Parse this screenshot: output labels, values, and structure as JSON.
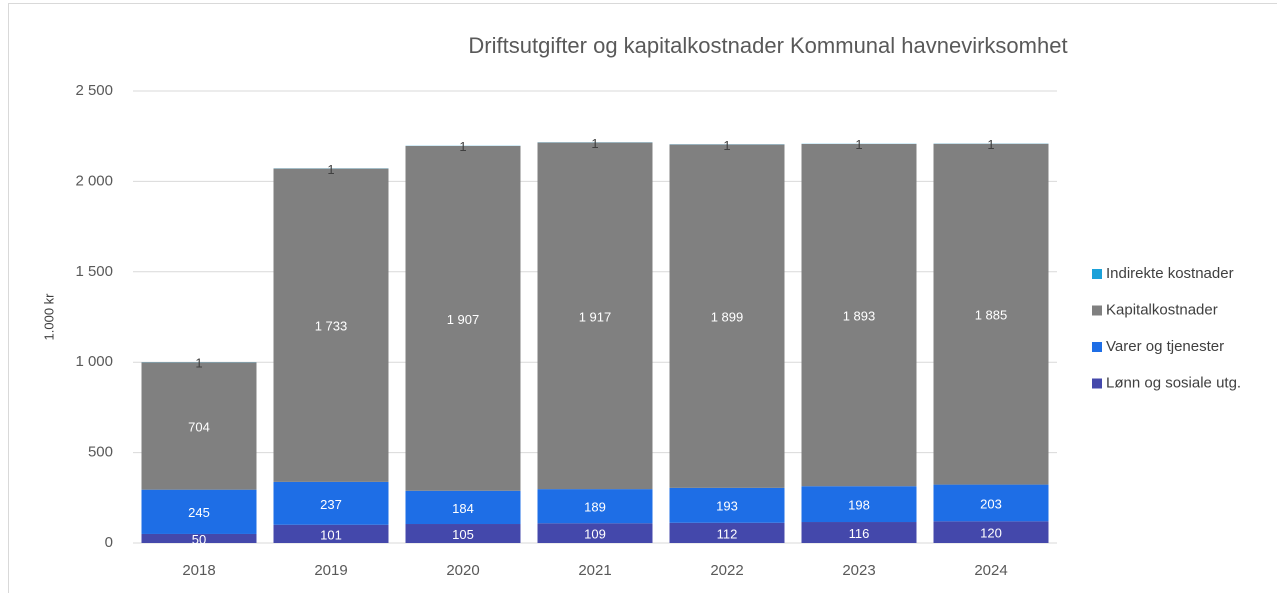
{
  "chart_data": {
    "type": "stacked_bar",
    "title": "Driftsutgifter og kapitalkostnader Kommunal havnevirksomhet",
    "y_label": "1.000 kr",
    "categories": [
      "2018",
      "2019",
      "2020",
      "2021",
      "2022",
      "2023",
      "2024"
    ],
    "series": [
      {
        "name": "Lønn og sosiale utg.",
        "color": "#4448ab",
        "values": [
          50,
          101,
          105,
          109,
          112,
          116,
          120
        ]
      },
      {
        "name": "Varer og tjenester",
        "color": "#1e6ee6",
        "values": [
          245,
          237,
          184,
          189,
          193,
          198,
          203
        ]
      },
      {
        "name": "Kapitalkostnader",
        "color": "#808080",
        "values": [
          704,
          1733,
          1907,
          1917,
          1899,
          1893,
          1885
        ],
        "value_labels": [
          "704",
          "1 733",
          "1 907",
          "1 917",
          "1 899",
          "1 893",
          "1 885"
        ]
      },
      {
        "name": "Indirekte kostnader",
        "color": "#1ba1d9",
        "values": [
          1,
          1,
          1,
          1,
          1,
          1,
          1
        ]
      }
    ],
    "ylim": [
      0,
      2500
    ],
    "yticks": [
      0,
      500,
      {
        "value": 1000,
        "label": "1 000"
      },
      {
        "value": 1500,
        "label": "1 500"
      },
      {
        "value": 2000,
        "label": "2 000"
      },
      {
        "value": 2500,
        "label": "2 500"
      }
    ],
    "grid": true,
    "legend": "right"
  }
}
